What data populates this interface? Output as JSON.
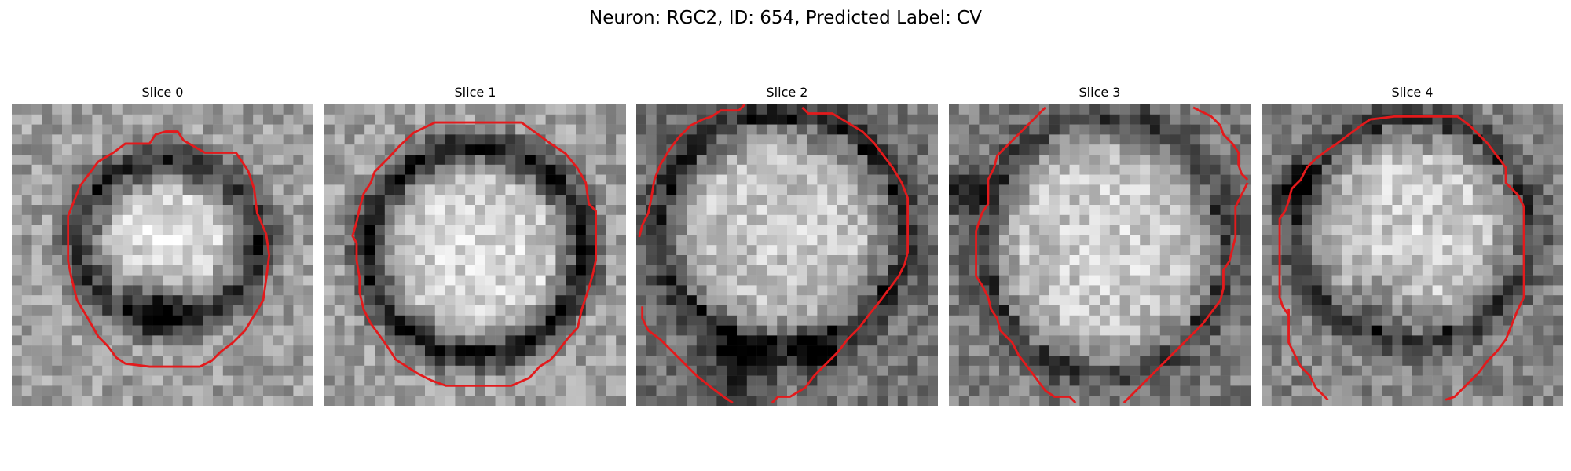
{
  "figure": {
    "title": "Neuron: RGC2, ID: 654, Predicted Label: CV"
  },
  "slices": [
    {
      "label": "Slice 0",
      "seed": 11,
      "image_pattern": "bright elliptical cell body with dark membrane ring and dark patch in lower half",
      "contour_description": "closed contour around cell body"
    },
    {
      "label": "Slice 1",
      "seed": 23,
      "image_pattern": "bright elliptical cell body with thick dark membrane ring",
      "contour_description": "closed contour around cell body"
    },
    {
      "label": "Slice 2",
      "seed": 37,
      "image_pattern": "grainy bright cell body filling most of frame with dark lower region",
      "contour_description": "contour partially clipped by image border"
    },
    {
      "label": "Slice 3",
      "seed": 41,
      "image_pattern": "grainy bright cell body with darker frame corners",
      "contour_description": "contour partially clipped by image border"
    },
    {
      "label": "Slice 4",
      "seed": 53,
      "image_pattern": "grainy bright cell body with dark left side and lower band",
      "contour_description": "contour partially clipped by image border"
    }
  ],
  "colors": {
    "contour": "#e31a1c",
    "background": "#ffffff",
    "text": "#000000"
  }
}
